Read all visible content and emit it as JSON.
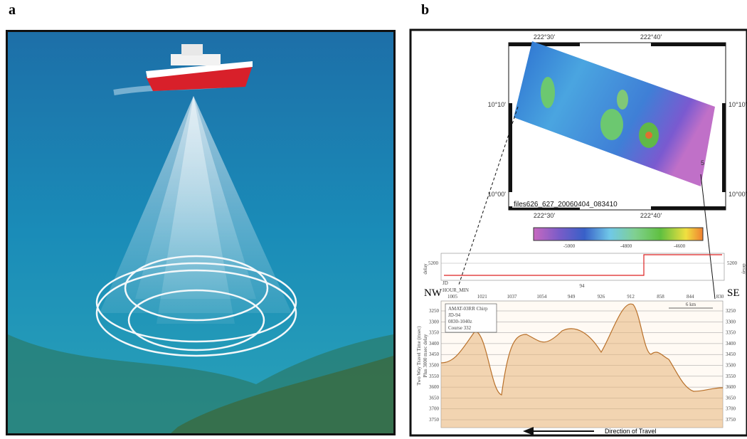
{
  "panels": [
    {
      "label": "a"
    },
    {
      "label": "b",
      "map": {
        "lon_labels": [
          "222°30'",
          "222°40'"
        ],
        "lat_labels": [
          "10°10'",
          "10°00'"
        ],
        "filename": "files626_627_20060404_083410",
        "marker": "5"
      },
      "colorbar": {
        "labels": [
          "-5000",
          "-4800",
          "-4600"
        ]
      },
      "delay": {
        "axis_label": "delay",
        "tick": "5200",
        "jd_label": "JD",
        "jd": "94",
        "hour_label": "HOUR_MIN",
        "hours": [
          "1005",
          "1021",
          "1037",
          "1054",
          "949",
          "926",
          "912",
          "858",
          "844",
          "830"
        ]
      },
      "section": {
        "left": "NW",
        "right": "SE",
        "info": [
          "AMAT-03RR Chirp",
          "JD-94",
          "0830-1040z",
          "Course 332"
        ],
        "scale": "6 km",
        "ticks": [
          "3250",
          "3300",
          "3350",
          "3400",
          "3450",
          "3500",
          "3550",
          "3600",
          "3650",
          "3700",
          "3750"
        ],
        "axis_label": [
          "Two Way Travel Time (msec)",
          "Plus 3000 msec delay"
        ],
        "direction": "Direction of Travel"
      }
    }
  ]
}
